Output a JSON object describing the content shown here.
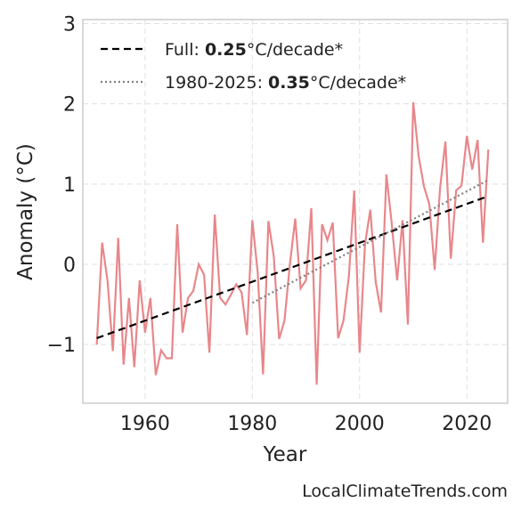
{
  "chart_data": {
    "type": "line",
    "xlabel": "Year",
    "ylabel": "Anomaly (°C)",
    "source": "LocalClimateTrends.com",
    "xlim": [
      1948.4,
      2027.6
    ],
    "ylim": [
      -1.73,
      3.05
    ],
    "xticks": [
      1960,
      1980,
      2000,
      2020
    ],
    "yticks": [
      {
        "value": -1,
        "label": "−1"
      },
      0,
      1,
      2,
      3
    ],
    "grid": true,
    "legend": "upper left",
    "series": [
      {
        "name": "Anomaly",
        "legend": false,
        "color": "#e8878b",
        "style": "solid",
        "x": [
          1951,
          1952,
          1953,
          1954,
          1955,
          1956,
          1957,
          1958,
          1959,
          1960,
          1961,
          1962,
          1963,
          1964,
          1965,
          1966,
          1967,
          1968,
          1969,
          1970,
          1971,
          1972,
          1973,
          1974,
          1975,
          1976,
          1977,
          1978,
          1979,
          1980,
          1981,
          1982,
          1983,
          1984,
          1985,
          1986,
          1987,
          1988,
          1989,
          1990,
          1991,
          1992,
          1993,
          1994,
          1995,
          1996,
          1997,
          1998,
          1999,
          2000,
          2001,
          2002,
          2003,
          2004,
          2005,
          2006,
          2007,
          2008,
          2009,
          2010,
          2011,
          2012,
          2013,
          2014,
          2015,
          2016,
          2017,
          2018,
          2019,
          2020,
          2021,
          2022,
          2023,
          2024
        ],
        "values": [
          -1.0,
          0.27,
          -0.2,
          -1.08,
          0.33,
          -1.25,
          -0.42,
          -1.28,
          -0.2,
          -0.85,
          -0.42,
          -1.38,
          -1.07,
          -1.17,
          -1.17,
          0.5,
          -0.85,
          -0.42,
          -0.33,
          0.0,
          -0.13,
          -1.1,
          0.62,
          -0.42,
          -0.5,
          -0.38,
          -0.25,
          -0.35,
          -0.88,
          0.55,
          -0.1,
          -1.37,
          0.54,
          0.1,
          -0.93,
          -0.7,
          0.0,
          0.57,
          -0.3,
          -0.2,
          0.7,
          -1.5,
          0.5,
          0.3,
          0.52,
          -0.92,
          -0.7,
          -0.15,
          0.92,
          -1.1,
          0.25,
          0.68,
          -0.22,
          -0.6,
          1.12,
          0.5,
          -0.2,
          0.55,
          -0.75,
          2.02,
          1.35,
          0.97,
          0.75,
          -0.07,
          0.95,
          1.53,
          0.07,
          0.92,
          0.98,
          1.6,
          1.18,
          1.55,
          0.27,
          1.43
        ]
      },
      {
        "name": "Full: 0.25°C/decade*",
        "color": "#000000",
        "style": "dashed",
        "x": [
          1951,
          2024
        ],
        "values": [
          -0.92,
          0.85
        ]
      },
      {
        "name": "1980-2025: 0.35°C/decade*",
        "color": "#808080",
        "style": "dotted",
        "x": [
          1980,
          2024
        ],
        "values": [
          -0.48,
          1.05
        ]
      }
    ]
  }
}
